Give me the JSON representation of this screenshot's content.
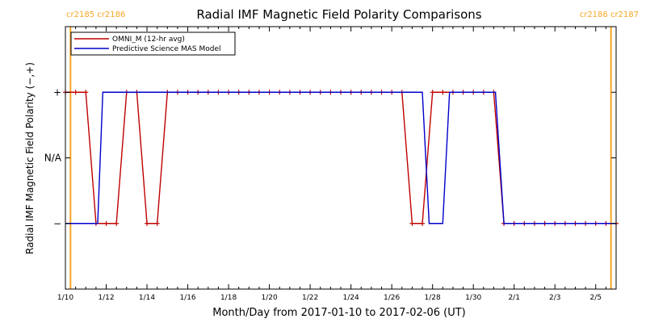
{
  "chart_data": {
    "type": "line",
    "title": "Radial IMF Magnetic Field Polarity Comparisons",
    "xlabel": "Month/Day from 2017-01-10 to 2017-02-06 (UT)",
    "ylabel": "Radial IMF Magnetic Field Polarity (−,+)",
    "x_range": [
      "2017-01-10T00:00",
      "2017-02-06T00:00"
    ],
    "x_ticks": [
      "1/10",
      "1/12",
      "1/14",
      "1/16",
      "1/18",
      "1/20",
      "1/22",
      "1/24",
      "1/26",
      "1/28",
      "1/30",
      "2/1",
      "2/3",
      "2/5"
    ],
    "y_ticks": [
      {
        "value": 1,
        "label": "+"
      },
      {
        "value": 0,
        "label": "N/A"
      },
      {
        "value": -1,
        "label": "−"
      }
    ],
    "ylim": [
      -2,
      2
    ],
    "legend": {
      "position": "top-left"
    },
    "carrington_markers": [
      {
        "x": "2017-01-10T06:00",
        "label": "cr2185 cr2186",
        "color": "#f5a623"
      },
      {
        "x": "2017-02-05T18:00",
        "label": "cr2186 cr2187",
        "color": "#f5a623"
      }
    ],
    "series": [
      {
        "name": "OMNI_M (12-hr avg)",
        "color": "#c00000",
        "markers": true,
        "points": [
          {
            "x": "2017-01-10T00:00",
            "y": 1
          },
          {
            "x": "2017-01-10T12:00",
            "y": 1
          },
          {
            "x": "2017-01-11T00:00",
            "y": 1
          },
          {
            "x": "2017-01-11T12:00",
            "y": -1
          },
          {
            "x": "2017-01-12T00:00",
            "y": -1
          },
          {
            "x": "2017-01-12T12:00",
            "y": -1
          },
          {
            "x": "2017-01-13T00:00",
            "y": 1
          },
          {
            "x": "2017-01-13T12:00",
            "y": 1
          },
          {
            "x": "2017-01-14T00:00",
            "y": -1
          },
          {
            "x": "2017-01-14T12:00",
            "y": -1
          },
          {
            "x": "2017-01-15T00:00",
            "y": 1
          },
          {
            "x": "2017-01-15T12:00",
            "y": 1
          },
          {
            "x": "2017-01-16T00:00",
            "y": 1
          },
          {
            "x": "2017-01-16T12:00",
            "y": 1
          },
          {
            "x": "2017-01-17T00:00",
            "y": 1
          },
          {
            "x": "2017-01-17T12:00",
            "y": 1
          },
          {
            "x": "2017-01-18T00:00",
            "y": 1
          },
          {
            "x": "2017-01-18T12:00",
            "y": 1
          },
          {
            "x": "2017-01-19T00:00",
            "y": 1
          },
          {
            "x": "2017-01-19T12:00",
            "y": 1
          },
          {
            "x": "2017-01-20T00:00",
            "y": 1
          },
          {
            "x": "2017-01-20T12:00",
            "y": 1
          },
          {
            "x": "2017-01-21T00:00",
            "y": 1
          },
          {
            "x": "2017-01-21T12:00",
            "y": 1
          },
          {
            "x": "2017-01-22T00:00",
            "y": 1
          },
          {
            "x": "2017-01-22T12:00",
            "y": 1
          },
          {
            "x": "2017-01-23T00:00",
            "y": 1
          },
          {
            "x": "2017-01-23T12:00",
            "y": 1
          },
          {
            "x": "2017-01-24T00:00",
            "y": 1
          },
          {
            "x": "2017-01-24T12:00",
            "y": 1
          },
          {
            "x": "2017-01-25T00:00",
            "y": 1
          },
          {
            "x": "2017-01-25T12:00",
            "y": 1
          },
          {
            "x": "2017-01-26T00:00",
            "y": 1
          },
          {
            "x": "2017-01-26T12:00",
            "y": 1
          },
          {
            "x": "2017-01-27T00:00",
            "y": -1
          },
          {
            "x": "2017-01-27T12:00",
            "y": -1
          },
          {
            "x": "2017-01-28T00:00",
            "y": 1
          },
          {
            "x": "2017-01-28T12:00",
            "y": 1
          },
          {
            "x": "2017-01-29T00:00",
            "y": 1
          },
          {
            "x": "2017-01-29T12:00",
            "y": 1
          },
          {
            "x": "2017-01-30T00:00",
            "y": 1
          },
          {
            "x": "2017-01-30T12:00",
            "y": 1
          },
          {
            "x": "2017-01-31T00:00",
            "y": 1
          },
          {
            "x": "2017-01-31T12:00",
            "y": -1
          },
          {
            "x": "2017-02-01T00:00",
            "y": -1
          },
          {
            "x": "2017-02-01T12:00",
            "y": -1
          },
          {
            "x": "2017-02-02T00:00",
            "y": -1
          },
          {
            "x": "2017-02-02T12:00",
            "y": -1
          },
          {
            "x": "2017-02-03T00:00",
            "y": -1
          },
          {
            "x": "2017-02-03T12:00",
            "y": -1
          },
          {
            "x": "2017-02-04T00:00",
            "y": -1
          },
          {
            "x": "2017-02-04T12:00",
            "y": -1
          },
          {
            "x": "2017-02-05T00:00",
            "y": -1
          },
          {
            "x": "2017-02-05T12:00",
            "y": -1
          },
          {
            "x": "2017-02-06T00:00",
            "y": -1
          }
        ]
      },
      {
        "name": "Predictive Science MAS Model",
        "color": "#0000cc",
        "markers": false,
        "points": [
          {
            "x": "2017-01-10T00:00",
            "y": -1
          },
          {
            "x": "2017-01-11T14:00",
            "y": -1
          },
          {
            "x": "2017-01-11T20:00",
            "y": 1
          },
          {
            "x": "2017-01-27T12:00",
            "y": 1
          },
          {
            "x": "2017-01-27T20:00",
            "y": -1
          },
          {
            "x": "2017-01-28T12:00",
            "y": -1
          },
          {
            "x": "2017-01-28T20:00",
            "y": 1
          },
          {
            "x": "2017-01-31T02:00",
            "y": 1
          },
          {
            "x": "2017-01-31T12:00",
            "y": -1
          },
          {
            "x": "2017-02-06T00:00",
            "y": -1
          }
        ]
      }
    ]
  }
}
